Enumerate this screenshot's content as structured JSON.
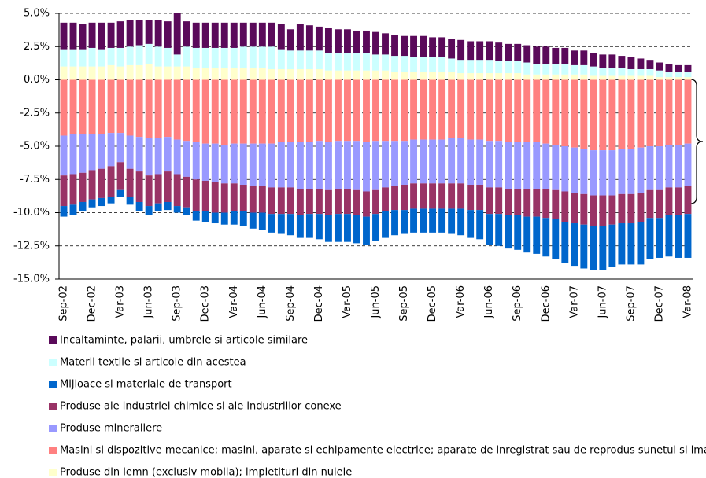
{
  "chart_data": {
    "type": "stacked_bar",
    "categories": [
      "Sep-02",
      null,
      null,
      "Dec-02",
      null,
      null,
      "Var-03",
      null,
      null,
      "Jun-03",
      null,
      null,
      "Sep-03",
      null,
      null,
      "Dec-03",
      null,
      null,
      "Var-04",
      null,
      null,
      "Jun-04",
      null,
      null,
      "Sep-04",
      null,
      null,
      "Dec-04",
      null,
      null,
      "Var-05",
      null,
      null,
      "Jun-05",
      null,
      null,
      "Sep-05",
      null,
      null,
      "Dec-05",
      null,
      null,
      "Var-06",
      null,
      null,
      "Jun-06",
      null,
      null,
      "Sep-06",
      null,
      null,
      "Dec-06",
      null,
      null,
      "Var-07",
      null,
      null,
      "Jun-07",
      null,
      null,
      "Sep-07",
      null,
      null,
      "Dec-07",
      null,
      null,
      "Var-08"
    ],
    "series": [
      {
        "name": "Incaltaminte, palarii, umbrele si articole similare",
        "color": "#5a0a5a",
        "values": [
          2.0,
          2.0,
          1.9,
          1.9,
          2.0,
          1.9,
          2.0,
          2.0,
          1.9,
          1.8,
          2.0,
          2.0,
          3.1,
          1.9,
          1.9,
          1.9,
          1.9,
          1.9,
          1.9,
          1.8,
          1.8,
          1.8,
          1.8,
          1.9,
          1.6,
          2.0,
          1.9,
          1.8,
          1.9,
          1.8,
          1.8,
          1.7,
          1.7,
          1.7,
          1.6,
          1.6,
          1.5,
          1.6,
          1.6,
          1.5,
          1.5,
          1.5,
          1.5,
          1.4,
          1.4,
          1.4,
          1.4,
          1.3,
          1.3,
          1.3,
          1.3,
          1.3,
          1.2,
          1.2,
          1.1,
          1.1,
          1.0,
          1.0,
          1.0,
          0.9,
          0.9,
          0.8,
          0.7,
          0.6,
          0.6,
          0.5,
          0.5
        ]
      },
      {
        "name": "Materii textile si articole din acestea",
        "color": "#ccffff",
        "values": [
          1.3,
          1.3,
          1.3,
          1.4,
          1.3,
          1.3,
          1.4,
          1.4,
          1.5,
          1.5,
          1.5,
          1.4,
          0.9,
          1.5,
          1.5,
          1.5,
          1.5,
          1.5,
          1.5,
          1.6,
          1.6,
          1.6,
          1.7,
          1.5,
          1.4,
          1.4,
          1.4,
          1.4,
          1.3,
          1.3,
          1.3,
          1.3,
          1.3,
          1.2,
          1.2,
          1.2,
          1.2,
          1.1,
          1.1,
          1.1,
          1.1,
          1.0,
          1.0,
          1.0,
          1.0,
          1.0,
          0.9,
          0.9,
          0.9,
          0.9,
          0.8,
          0.8,
          0.8,
          0.8,
          0.7,
          0.7,
          0.7,
          0.6,
          0.6,
          0.6,
          0.5,
          0.5,
          0.5,
          0.5,
          0.4,
          0.4,
          0.4
        ]
      },
      {
        "name": "Mijloace si materiale de transport",
        "color": "#0066cc",
        "values": [
          -0.8,
          -0.8,
          -0.7,
          -0.6,
          -0.6,
          -0.5,
          -0.5,
          -0.6,
          -0.7,
          -0.7,
          -0.6,
          -0.6,
          -0.5,
          -0.6,
          -0.7,
          -0.8,
          -0.8,
          -0.9,
          -1.0,
          -1.1,
          -1.2,
          -1.3,
          -1.4,
          -1.5,
          -1.6,
          -1.7,
          -1.8,
          -1.9,
          -2.0,
          -2.1,
          -2.1,
          -2.1,
          -2.1,
          -2.0,
          -2.0,
          -1.9,
          -1.8,
          -1.8,
          -1.8,
          -1.8,
          -1.8,
          -1.9,
          -2.0,
          -2.1,
          -2.2,
          -2.3,
          -2.4,
          -2.5,
          -2.6,
          -2.7,
          -2.8,
          -2.9,
          -3.0,
          -3.1,
          -3.2,
          -3.3,
          -3.3,
          -3.3,
          -3.2,
          -3.1,
          -3.1,
          -3.2,
          -3.1,
          -3.0,
          -3.1,
          -3.2,
          -3.3
        ]
      },
      {
        "name": "Produse ale industriei chimice si ale industriilor conexe",
        "color": "#993366",
        "values": [
          -2.3,
          -2.3,
          -2.2,
          -2.2,
          -2.2,
          -2.3,
          -2.1,
          -2.1,
          -2.3,
          -2.3,
          -2.2,
          -2.3,
          -2.4,
          -2.3,
          -2.4,
          -2.3,
          -2.3,
          -2.2,
          -2.1,
          -2.0,
          -2.0,
          -2.0,
          -2.0,
          -2.0,
          -2.0,
          -2.0,
          -1.9,
          -1.9,
          -1.9,
          -1.9,
          -1.9,
          -1.9,
          -1.9,
          -1.8,
          -1.8,
          -1.8,
          -1.9,
          -1.9,
          -1.9,
          -1.9,
          -1.9,
          -1.9,
          -1.9,
          -1.9,
          -1.9,
          -2.0,
          -2.0,
          -2.0,
          -2.0,
          -2.1,
          -2.1,
          -2.2,
          -2.2,
          -2.3,
          -2.3,
          -2.3,
          -2.3,
          -2.3,
          -2.2,
          -2.2,
          -2.2,
          -2.2,
          -2.1,
          -2.1,
          -2.1,
          -2.1,
          -2.1
        ]
      },
      {
        "name": "Produse mineraliere",
        "color": "#9999ff",
        "values": [
          -3.0,
          -3.0,
          -2.9,
          -2.7,
          -2.6,
          -2.5,
          -2.2,
          -2.5,
          -2.6,
          -2.8,
          -2.7,
          -2.6,
          -2.6,
          -2.7,
          -2.8,
          -2.8,
          -2.9,
          -2.9,
          -3.0,
          -3.1,
          -3.2,
          -3.2,
          -3.3,
          -3.4,
          -3.4,
          -3.5,
          -3.5,
          -3.6,
          -3.6,
          -3.6,
          -3.6,
          -3.7,
          -3.7,
          -3.7,
          -3.5,
          -3.4,
          -3.3,
          -3.3,
          -3.3,
          -3.3,
          -3.3,
          -3.4,
          -3.4,
          -3.4,
          -3.4,
          -3.5,
          -3.5,
          -3.5,
          -3.5,
          -3.5,
          -3.5,
          -3.4,
          -3.4,
          -3.4,
          -3.4,
          -3.4,
          -3.4,
          -3.4,
          -3.4,
          -3.4,
          -3.4,
          -3.4,
          -3.3,
          -3.3,
          -3.2,
          -3.2,
          -3.2
        ]
      },
      {
        "name": "Masini si dispozitive mecanice; masini, aparate si echipamente electrice; aparate de inregistrat sau de reprodus sunetul si imaginile",
        "color": "#ff8080",
        "values": [
          -4.2,
          -4.1,
          -4.1,
          -4.1,
          -4.1,
          -4.0,
          -4.0,
          -4.2,
          -4.3,
          -4.4,
          -4.4,
          -4.3,
          -4.5,
          -4.6,
          -4.7,
          -4.8,
          -4.8,
          -4.9,
          -4.8,
          -4.8,
          -4.8,
          -4.8,
          -4.8,
          -4.7,
          -4.7,
          -4.7,
          -4.7,
          -4.6,
          -4.7,
          -4.6,
          -4.6,
          -4.6,
          -4.7,
          -4.6,
          -4.6,
          -4.6,
          -4.6,
          -4.5,
          -4.5,
          -4.5,
          -4.5,
          -4.4,
          -4.4,
          -4.5,
          -4.5,
          -4.6,
          -4.6,
          -4.7,
          -4.7,
          -4.7,
          -4.7,
          -4.8,
          -4.9,
          -5.0,
          -5.1,
          -5.2,
          -5.3,
          -5.3,
          -5.3,
          -5.2,
          -5.2,
          -5.1,
          -5.0,
          -5.0,
          -4.9,
          -4.9,
          -4.8
        ]
      },
      {
        "name": "Produse din lemn (exclusiv mobila); impletituri din nuiele",
        "color": "#ffffcc",
        "values": [
          1.0,
          1.0,
          1.0,
          1.0,
          1.0,
          1.1,
          1.0,
          1.1,
          1.1,
          1.2,
          1.0,
          1.0,
          1.0,
          1.0,
          0.9,
          0.9,
          0.9,
          0.9,
          0.9,
          0.9,
          0.9,
          0.9,
          0.8,
          0.8,
          0.8,
          0.8,
          0.8,
          0.8,
          0.7,
          0.7,
          0.7,
          0.7,
          0.7,
          0.7,
          0.7,
          0.6,
          0.6,
          0.6,
          0.6,
          0.6,
          0.6,
          0.6,
          0.5,
          0.5,
          0.5,
          0.5,
          0.5,
          0.5,
          0.5,
          0.4,
          0.4,
          0.4,
          0.4,
          0.4,
          0.4,
          0.4,
          0.3,
          0.3,
          0.3,
          0.3,
          0.3,
          0.3,
          0.3,
          0.2,
          0.2,
          0.2,
          0.2
        ]
      }
    ],
    "ylim": [
      -15,
      5
    ],
    "yticks": [
      {
        "value": -15,
        "label": "-15.0%"
      },
      {
        "value": -12.5,
        "label": "-12.5%"
      },
      {
        "value": -10,
        "label": "-10.0%"
      },
      {
        "value": -7.5,
        "label": "-7.5%"
      },
      {
        "value": -5,
        "label": "-5.0%"
      },
      {
        "value": -2.5,
        "label": "-2.5%"
      },
      {
        "value": 0,
        "label": "0.0%"
      },
      {
        "value": 2.5,
        "label": "2.5%"
      },
      {
        "value": 5,
        "label": "5.0%"
      }
    ],
    "grid": true
  }
}
